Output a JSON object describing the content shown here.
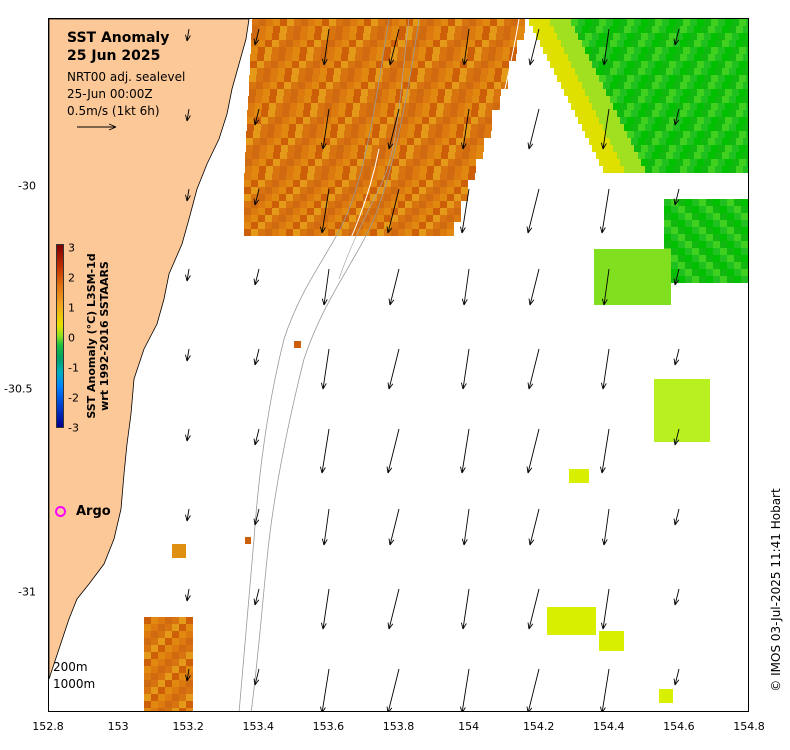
{
  "header": {
    "title": "SST Anomaly",
    "date": "25 Jun 2025",
    "model": "NRT00 adj. sealevel",
    "time": "25-Jun 00:00Z",
    "scale_label": "0.5m/s (1kt 6h)"
  },
  "colorbar": {
    "ticks": [
      "3",
      "2",
      "1",
      "0",
      "-1",
      "-2",
      "-3"
    ],
    "label_line1": "SST Anomaly (°C) L3SM-1d",
    "label_line2": "wrt 1992-2016 SSTAARS"
  },
  "axes": {
    "x_ticks": [
      "152.8",
      "153",
      "153.2",
      "153.4",
      "153.6",
      "153.8",
      "154",
      "154.2",
      "154.4",
      "154.6",
      "154.8"
    ],
    "y_ticks": [
      "-30",
      "-30.5",
      "-31"
    ],
    "xlim": [
      152.8,
      154.8
    ],
    "ylim": [
      -31.3,
      -29.6
    ]
  },
  "legend": {
    "argo_label": "Argo",
    "argo_color": "#ff00ff"
  },
  "depth_labels": [
    "200m",
    "1000m"
  ],
  "credit": "© IMOS 03-Jul-2025 11:41 Hobart",
  "colors": {
    "land": "#fdc897",
    "warm_anomaly": "#d87010",
    "green_anomaly": "#20c020"
  }
}
